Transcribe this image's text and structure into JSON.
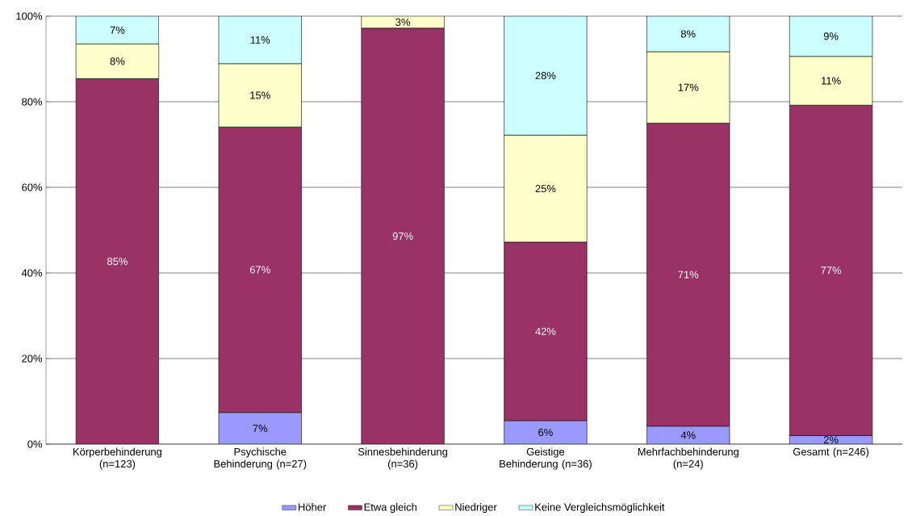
{
  "chart_data": {
    "type": "bar",
    "stacked": true,
    "categories": [
      "Körperbehinderung (n=123)",
      "Psychische Behinderung (n=27)",
      "Sinnesbehinderung (n=36)",
      "Geistige Behinderung (n=36)",
      "Mehrfachbehinderung (n=24)",
      "Gesamt (n=246)"
    ],
    "series": [
      {
        "name": "Höher",
        "color": "#9999ff",
        "values": [
          null,
          7.4,
          null,
          5.5,
          4.2,
          2.0
        ],
        "value_labels": [
          null,
          "7%",
          null,
          "6%",
          "4%",
          "2%"
        ]
      },
      {
        "name": "Etwa gleich",
        "color": "#993366",
        "values": [
          85.4,
          66.7,
          97.2,
          41.7,
          70.8,
          77.2
        ],
        "value_labels": [
          "85%",
          "67%",
          "97%",
          "42%",
          "71%",
          "77%"
        ]
      },
      {
        "name": "Niedriger",
        "color": "#ffffcc",
        "values": [
          8.1,
          14.8,
          2.8,
          25,
          16.7,
          11.4
        ],
        "value_labels": [
          "8%",
          "15%",
          "3%",
          "25%",
          "17%",
          "11%"
        ]
      },
      {
        "name": "Keine Vergleichsmöglichkeit",
        "color": "#ccffff",
        "values": [
          6.5,
          11.1,
          null,
          27.8,
          8.3,
          9.4
        ],
        "value_labels": [
          "7%",
          "11%",
          null,
          "28%",
          "8%",
          "9%"
        ]
      }
    ],
    "ylim": [
      0,
      100
    ],
    "yticks": [
      {
        "value": 0,
        "label": "0%"
      },
      {
        "value": 20,
        "label": "20%"
      },
      {
        "value": 40,
        "label": "40%"
      },
      {
        "value": 60,
        "label": "60%"
      },
      {
        "value": 80,
        "label": "80%"
      },
      {
        "value": 100,
        "label": "100%"
      }
    ],
    "grid": "y",
    "legend": "bottom"
  }
}
